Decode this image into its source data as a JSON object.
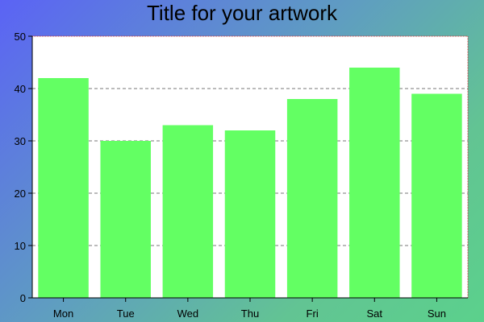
{
  "chart_data": {
    "type": "bar",
    "title": "Title for your artwork",
    "xlabel": "",
    "ylabel": "",
    "categories": [
      "Mon",
      "Tue",
      "Wed",
      "Thu",
      "Fri",
      "Sat",
      "Sun"
    ],
    "values": [
      42,
      30,
      33,
      32,
      38,
      44,
      39
    ],
    "ylim": [
      0,
      50
    ],
    "yticks": [
      "0",
      "10",
      "20",
      "30",
      "40",
      "50"
    ],
    "grid": true,
    "colors": {
      "bar": "#63ff63",
      "plot_background": "#ffffff",
      "grid": "#777777",
      "axis": "#000000",
      "frame": "#cc3333"
    }
  }
}
